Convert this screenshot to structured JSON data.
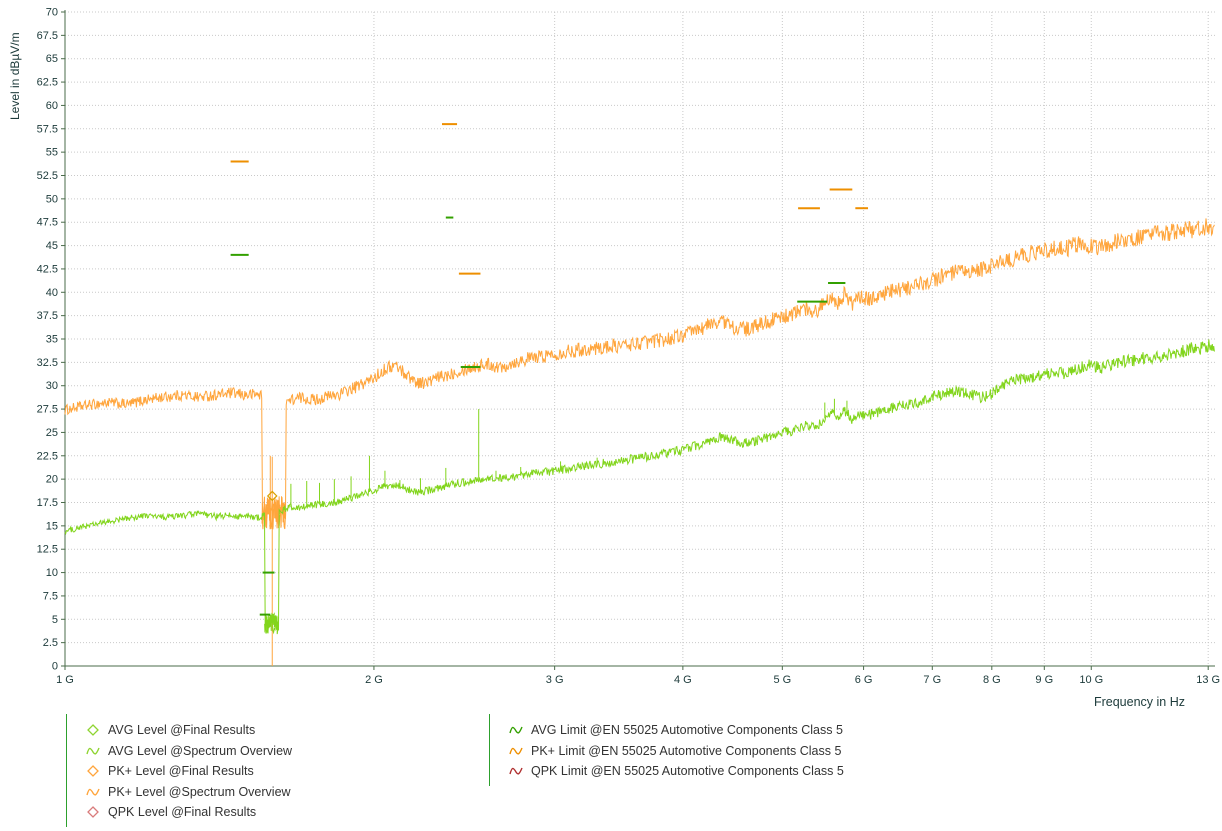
{
  "chart_data": {
    "type": "line",
    "xlabel": "Frequency in Hz",
    "ylabel": "Level in dBµV/m",
    "x_scale": "log",
    "x_range_ghz": [
      1.0,
      13.2
    ],
    "ylim": [
      0,
      70
    ],
    "y_tick_step": 2.5,
    "grid": "dotted",
    "legend_position": "bottom",
    "x_ticks": [
      {
        "ghz": 1,
        "label": "1 G"
      },
      {
        "ghz": 2,
        "label": "2 G"
      },
      {
        "ghz": 3,
        "label": "3 G"
      },
      {
        "ghz": 4,
        "label": "4 G"
      },
      {
        "ghz": 5,
        "label": "5 G"
      },
      {
        "ghz": 6,
        "label": "6 G"
      },
      {
        "ghz": 7,
        "label": "7 G"
      },
      {
        "ghz": 8,
        "label": "8 G"
      },
      {
        "ghz": 9,
        "label": "9 G"
      },
      {
        "ghz": 10,
        "label": "10 G"
      },
      {
        "ghz": 13,
        "label": "13 G"
      }
    ],
    "style": {
      "axis_color": "#4a6b4a",
      "grid_color": "#c9c9c9",
      "text_color": "#1c3a3a"
    },
    "series": [
      {
        "name": "PK+ Level @Spectrum Overview",
        "color": "#FFA53C",
        "noise_db": [
          0.55,
          1.0
        ],
        "points": [
          [
            1.0,
            27.4
          ],
          [
            1.05,
            27.9
          ],
          [
            1.1,
            28.2
          ],
          [
            1.15,
            28.0
          ],
          [
            1.2,
            28.5
          ],
          [
            1.25,
            28.8
          ],
          [
            1.3,
            29.0
          ],
          [
            1.35,
            28.8
          ],
          [
            1.4,
            29.0
          ],
          [
            1.45,
            29.2
          ],
          [
            1.5,
            29.0
          ],
          [
            1.54,
            29.1
          ],
          [
            1.65,
            28.4
          ],
          [
            1.7,
            28.7
          ],
          [
            1.75,
            28.5
          ],
          [
            1.8,
            28.8
          ],
          [
            1.85,
            29.1
          ],
          [
            1.9,
            29.6
          ],
          [
            1.95,
            30.2
          ],
          [
            2.0,
            30.8
          ],
          [
            2.05,
            31.8
          ],
          [
            2.1,
            32.2
          ],
          [
            2.15,
            31.2
          ],
          [
            2.2,
            30.4
          ],
          [
            2.25,
            30.3
          ],
          [
            2.3,
            30.8
          ],
          [
            2.35,
            31.1
          ],
          [
            2.4,
            31.5
          ],
          [
            2.45,
            31.8
          ],
          [
            2.5,
            32.0
          ],
          [
            2.55,
            32.2
          ],
          [
            2.6,
            32.3
          ],
          [
            2.65,
            31.9
          ],
          [
            2.7,
            32.3
          ],
          [
            2.8,
            32.8
          ],
          [
            2.9,
            33.1
          ],
          [
            3.0,
            33.4
          ],
          [
            3.1,
            33.7
          ],
          [
            3.2,
            33.9
          ],
          [
            3.3,
            34.0
          ],
          [
            3.4,
            34.2
          ],
          [
            3.5,
            34.3
          ],
          [
            3.6,
            34.5
          ],
          [
            3.7,
            34.7
          ],
          [
            3.8,
            34.9
          ],
          [
            3.9,
            35.1
          ],
          [
            4.0,
            35.4
          ],
          [
            4.1,
            35.8
          ],
          [
            4.2,
            36.3
          ],
          [
            4.35,
            37.0
          ],
          [
            4.5,
            36.2
          ],
          [
            4.65,
            36.0
          ],
          [
            4.8,
            36.8
          ],
          [
            5.0,
            37.3
          ],
          [
            5.15,
            37.8
          ],
          [
            5.3,
            38.3
          ],
          [
            5.4,
            37.9
          ],
          [
            5.5,
            39.0
          ],
          [
            5.6,
            39.8
          ],
          [
            5.65,
            38.8
          ],
          [
            5.75,
            39.8
          ],
          [
            5.85,
            38.8
          ],
          [
            5.95,
            39.4
          ],
          [
            6.05,
            39.2
          ],
          [
            6.2,
            39.7
          ],
          [
            6.5,
            40.2
          ],
          [
            6.8,
            40.8
          ],
          [
            7.0,
            41.3
          ],
          [
            7.2,
            41.8
          ],
          [
            7.4,
            42.1
          ],
          [
            7.6,
            42.0
          ],
          [
            7.8,
            42.4
          ],
          [
            8.0,
            42.8
          ],
          [
            8.15,
            43.4
          ],
          [
            8.3,
            43.2
          ],
          [
            8.5,
            43.9
          ],
          [
            8.7,
            44.1
          ],
          [
            9.0,
            44.4
          ],
          [
            9.2,
            44.8
          ],
          [
            9.4,
            44.5
          ],
          [
            9.6,
            45.0
          ],
          [
            9.8,
            45.2
          ],
          [
            10.0,
            45.0
          ],
          [
            10.2,
            44.8
          ],
          [
            10.5,
            45.3
          ],
          [
            10.8,
            45.6
          ],
          [
            11.2,
            45.9
          ],
          [
            11.6,
            46.2
          ],
          [
            12.0,
            46.4
          ],
          [
            12.4,
            46.7
          ],
          [
            12.8,
            46.9
          ],
          [
            13.2,
            47.0
          ]
        ],
        "noise_bands": [
          {
            "f0": 1.556,
            "f1": 1.642,
            "min": 14.6,
            "max": 18.2
          }
        ],
        "spikes": [
          [
            1.585,
            22.5,
            15.5
          ]
        ],
        "drops": [
          {
            "f": 1.592,
            "top": 22.4,
            "bottom": 0
          }
        ]
      },
      {
        "name": "AVG Level @Spectrum Overview",
        "color": "#82D51C",
        "noise_db": [
          0.3,
          0.7
        ],
        "points": [
          [
            1.0,
            14.4
          ],
          [
            1.05,
            15.0
          ],
          [
            1.1,
            15.4
          ],
          [
            1.15,
            15.8
          ],
          [
            1.2,
            16.1
          ],
          [
            1.25,
            15.9
          ],
          [
            1.3,
            16.1
          ],
          [
            1.35,
            16.3
          ],
          [
            1.4,
            16.0
          ],
          [
            1.45,
            16.1
          ],
          [
            1.5,
            16.0
          ],
          [
            1.54,
            15.9
          ],
          [
            1.625,
            16.6
          ],
          [
            1.65,
            17.0
          ],
          [
            1.7,
            17.0
          ],
          [
            1.75,
            17.2
          ],
          [
            1.8,
            17.4
          ],
          [
            1.85,
            17.6
          ],
          [
            1.9,
            18.0
          ],
          [
            1.95,
            18.4
          ],
          [
            2.0,
            18.8
          ],
          [
            2.05,
            19.2
          ],
          [
            2.1,
            19.3
          ],
          [
            2.15,
            19.0
          ],
          [
            2.2,
            18.6
          ],
          [
            2.25,
            18.7
          ],
          [
            2.3,
            19.0
          ],
          [
            2.35,
            19.3
          ],
          [
            2.4,
            19.5
          ],
          [
            2.45,
            19.7
          ],
          [
            2.5,
            19.9
          ],
          [
            2.6,
            20.0
          ],
          [
            2.7,
            20.2
          ],
          [
            2.8,
            20.4
          ],
          [
            2.9,
            20.7
          ],
          [
            3.0,
            20.9
          ],
          [
            3.2,
            21.4
          ],
          [
            3.4,
            21.8
          ],
          [
            3.6,
            22.2
          ],
          [
            3.8,
            22.7
          ],
          [
            4.0,
            23.1
          ],
          [
            4.2,
            23.9
          ],
          [
            4.35,
            24.5
          ],
          [
            4.5,
            24.0
          ],
          [
            4.65,
            23.9
          ],
          [
            4.8,
            24.4
          ],
          [
            5.0,
            24.9
          ],
          [
            5.15,
            25.3
          ],
          [
            5.3,
            25.8
          ],
          [
            5.4,
            25.6
          ],
          [
            5.5,
            26.5
          ],
          [
            5.6,
            27.3
          ],
          [
            5.65,
            26.4
          ],
          [
            5.75,
            27.3
          ],
          [
            5.85,
            26.4
          ],
          [
            5.95,
            27.0
          ],
          [
            6.05,
            26.8
          ],
          [
            6.2,
            27.2
          ],
          [
            6.5,
            27.8
          ],
          [
            6.8,
            28.3
          ],
          [
            7.0,
            28.8
          ],
          [
            7.2,
            29.2
          ],
          [
            7.4,
            29.4
          ],
          [
            7.6,
            29.2
          ],
          [
            7.8,
            28.8
          ],
          [
            8.0,
            29.1
          ],
          [
            8.15,
            29.9
          ],
          [
            8.3,
            30.3
          ],
          [
            8.5,
            30.7
          ],
          [
            8.7,
            30.9
          ],
          [
            9.0,
            31.2
          ],
          [
            9.2,
            31.5
          ],
          [
            9.4,
            31.3
          ],
          [
            9.6,
            31.7
          ],
          [
            9.8,
            32.0
          ],
          [
            10.0,
            32.2
          ],
          [
            10.2,
            31.9
          ],
          [
            10.5,
            32.3
          ],
          [
            10.8,
            32.6
          ],
          [
            11.2,
            32.9
          ],
          [
            11.6,
            33.1
          ],
          [
            12.0,
            33.4
          ],
          [
            12.4,
            33.8
          ],
          [
            12.6,
            34.2
          ],
          [
            12.8,
            34.0
          ],
          [
            13.0,
            34.3
          ],
          [
            13.2,
            34.2
          ]
        ],
        "noise_bands": [
          {
            "f0": 1.565,
            "f1": 1.615,
            "min": 3.4,
            "max": 5.6
          }
        ],
        "spikes": [
          [
            1.66,
            19.5
          ],
          [
            1.72,
            19.8
          ],
          [
            1.77,
            19.6
          ],
          [
            1.83,
            20.0
          ],
          [
            1.9,
            20.3
          ],
          [
            1.98,
            22.5
          ],
          [
            2.05,
            20.9
          ],
          [
            2.12,
            19.9
          ],
          [
            2.22,
            20.1
          ],
          [
            2.35,
            21.2
          ],
          [
            2.53,
            27.5
          ],
          [
            2.63,
            20.9
          ],
          [
            2.78,
            21.3
          ],
          [
            3.04,
            21.9
          ],
          [
            3.3,
            22.3
          ],
          [
            5.5,
            28.2
          ],
          [
            5.62,
            28.6
          ],
          [
            5.78,
            28.4
          ]
        ],
        "drops": []
      }
    ],
    "limits": [
      {
        "name": "PK+ Limit @EN 55025 Automotive Components Class 5",
        "color": "#EE8F00",
        "segments": [
          [
            1.45,
            1.51,
            54
          ],
          [
            2.33,
            2.41,
            58
          ],
          [
            2.42,
            2.54,
            42
          ],
          [
            5.18,
            5.44,
            49
          ],
          [
            5.56,
            5.85,
            51
          ],
          [
            5.89,
            6.06,
            49
          ]
        ]
      },
      {
        "name": "AVG Limit @EN 55025 Automotive Components Class 5",
        "color": "#33A000",
        "segments": [
          [
            1.45,
            1.51,
            44
          ],
          [
            2.35,
            2.39,
            48
          ],
          [
            2.43,
            2.54,
            32
          ],
          [
            5.17,
            5.53,
            39
          ],
          [
            5.54,
            5.76,
            41
          ],
          [
            1.558,
            1.6,
            10
          ],
          [
            1.548,
            1.585,
            5.5
          ]
        ]
      },
      {
        "name": "QPK Limit @EN 55025 Automotive Components Class 5",
        "color": "#B03030",
        "segments": []
      }
    ],
    "markers": [
      {
        "name": "PK+ Level @Final Results",
        "shape": "diamond",
        "color": "#D8A000",
        "ghz": 1.592,
        "level_db": 18.2
      }
    ]
  },
  "legend": {
    "left": [
      {
        "symbol": "diamond",
        "color": "#8FD431",
        "label": "AVG Level @Final Results"
      },
      {
        "symbol": "curve",
        "color": "#8FD431",
        "label": "AVG Level @Spectrum Overview"
      },
      {
        "symbol": "diamond",
        "color": "#FFA53C",
        "label": "PK+ Level @Final Results"
      },
      {
        "symbol": "curve",
        "color": "#FFA53C",
        "label": "PK+ Level @Spectrum Overview"
      },
      {
        "symbol": "diamond",
        "color": "#D97B7B",
        "label": "QPK Level @Final Results"
      }
    ],
    "right": [
      {
        "symbol": "curve",
        "color": "#33A000",
        "label": "AVG Limit @EN 55025 Automotive Components Class 5"
      },
      {
        "symbol": "curve",
        "color": "#EE8F00",
        "label": "PK+ Limit @EN 55025 Automotive Components Class 5"
      },
      {
        "symbol": "curve",
        "color": "#B03030",
        "label": "QPK Limit @EN 55025 Automotive Components Class 5"
      }
    ]
  }
}
